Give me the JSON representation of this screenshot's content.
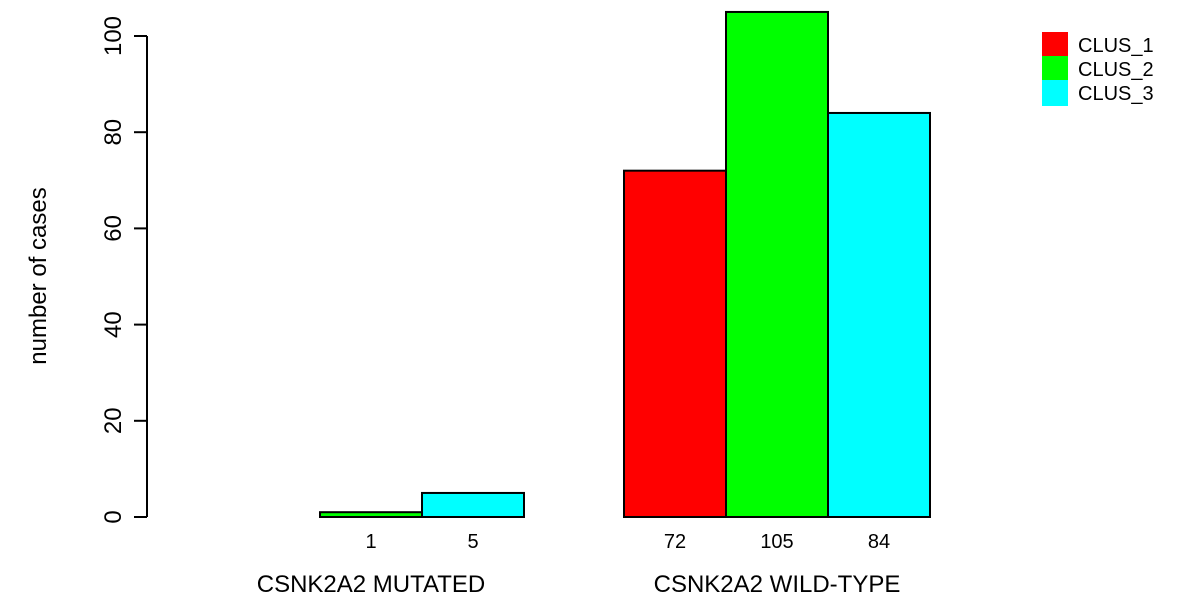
{
  "chart_data": {
    "type": "bar",
    "ylabel": "number of cases",
    "ylim": [
      0,
      105
    ],
    "yticks": [
      0,
      20,
      40,
      60,
      80,
      100
    ],
    "categories": [
      "CSNK2A2 MUTATED",
      "CSNK2A2 WILD-TYPE"
    ],
    "series": [
      {
        "name": "CLUS_1",
        "color": "#FF0000",
        "values": [
          0,
          72
        ],
        "labels": [
          "",
          "72"
        ]
      },
      {
        "name": "CLUS_2",
        "color": "#00FF00",
        "values": [
          1,
          105
        ],
        "labels": [
          "1",
          "105"
        ]
      },
      {
        "name": "CLUS_3",
        "color": "#00FFFF",
        "values": [
          5,
          84
        ],
        "labels": [
          "5",
          "84"
        ]
      }
    ],
    "legend": {
      "position": "top-right",
      "entries": [
        "CLUS_1",
        "CLUS_2",
        "CLUS_3"
      ]
    },
    "grid": false
  }
}
